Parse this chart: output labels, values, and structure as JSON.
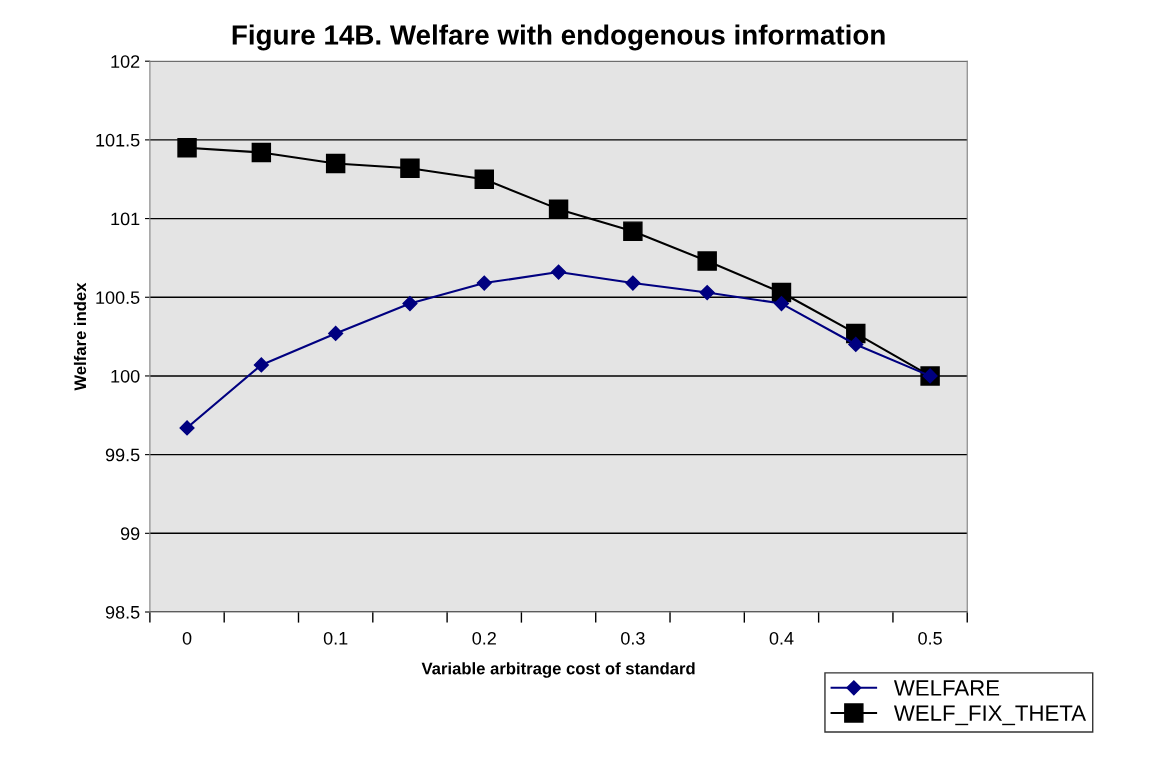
{
  "chart_data": {
    "type": "line",
    "title": "Figure 14B. Welfare with endogenous information",
    "xlabel": "Variable arbitrage cost of standard",
    "ylabel": "Welfare index",
    "categories": [
      "0",
      null,
      "0.1",
      null,
      "0.2",
      null,
      "0.3",
      null,
      "0.4",
      null,
      "0.5"
    ],
    "series": [
      {
        "name": "WELFARE",
        "color": "#000080",
        "marker": "diamond",
        "values": [
          99.67,
          100.07,
          100.27,
          100.46,
          100.59,
          100.66,
          100.59,
          100.53,
          100.46,
          100.2,
          100.0
        ]
      },
      {
        "name": "WELF_FIX_THETA",
        "color": "#000000",
        "marker": "square",
        "values": [
          101.45,
          101.42,
          101.35,
          101.32,
          101.25,
          101.06,
          100.92,
          100.73,
          100.53,
          100.27,
          100.0
        ]
      }
    ],
    "ylim": [
      98.5,
      102
    ],
    "yticks": [
      98.5,
      99,
      99.5,
      100,
      100.5,
      101,
      101.5,
      102
    ],
    "grid": "y",
    "legend": "bottom right",
    "line_style": "solid"
  }
}
